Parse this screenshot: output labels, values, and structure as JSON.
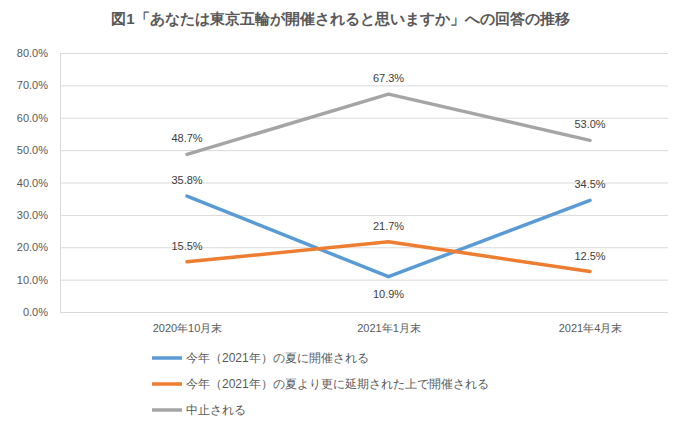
{
  "chart_data": {
    "type": "line",
    "title": "図1「あなたは東京五輪が開催されると思いますか」への回答の推移",
    "categories": [
      "2020年10月末",
      "2021年1月末",
      "2021年4月末"
    ],
    "series": [
      {
        "name": "今年（2021年）の夏に開催される",
        "color": "#5b9bd5",
        "values": [
          35.8,
          10.9,
          34.5
        ],
        "value_labels": [
          "35.8%",
          "10.9%",
          "34.5%"
        ]
      },
      {
        "name": "今年（2021年）の夏より更に延期された上で開催される",
        "color": "#ed7d31",
        "values": [
          15.5,
          21.7,
          12.5
        ],
        "value_labels": [
          "15.5%",
          "21.7%",
          "12.5%"
        ]
      },
      {
        "name": "中止される",
        "color": "#a5a5a5",
        "values": [
          48.7,
          67.3,
          53.0
        ],
        "value_labels": [
          "48.7%",
          "67.3%",
          "53.0%"
        ]
      }
    ],
    "ylim": [
      0,
      80
    ],
    "yticks": [
      {
        "value": 0,
        "label": "0.0%"
      },
      {
        "value": 10,
        "label": "10.0%"
      },
      {
        "value": 20,
        "label": "20.0%"
      },
      {
        "value": 30,
        "label": "30.0%"
      },
      {
        "value": 40,
        "label": "40.0%"
      },
      {
        "value": 50,
        "label": "50.0%"
      },
      {
        "value": 60,
        "label": "60.0%"
      },
      {
        "value": 70,
        "label": "70.0%"
      },
      {
        "value": 80,
        "label": "80.0%"
      }
    ],
    "grid": true,
    "data_labels": true,
    "legend": "bottom"
  }
}
